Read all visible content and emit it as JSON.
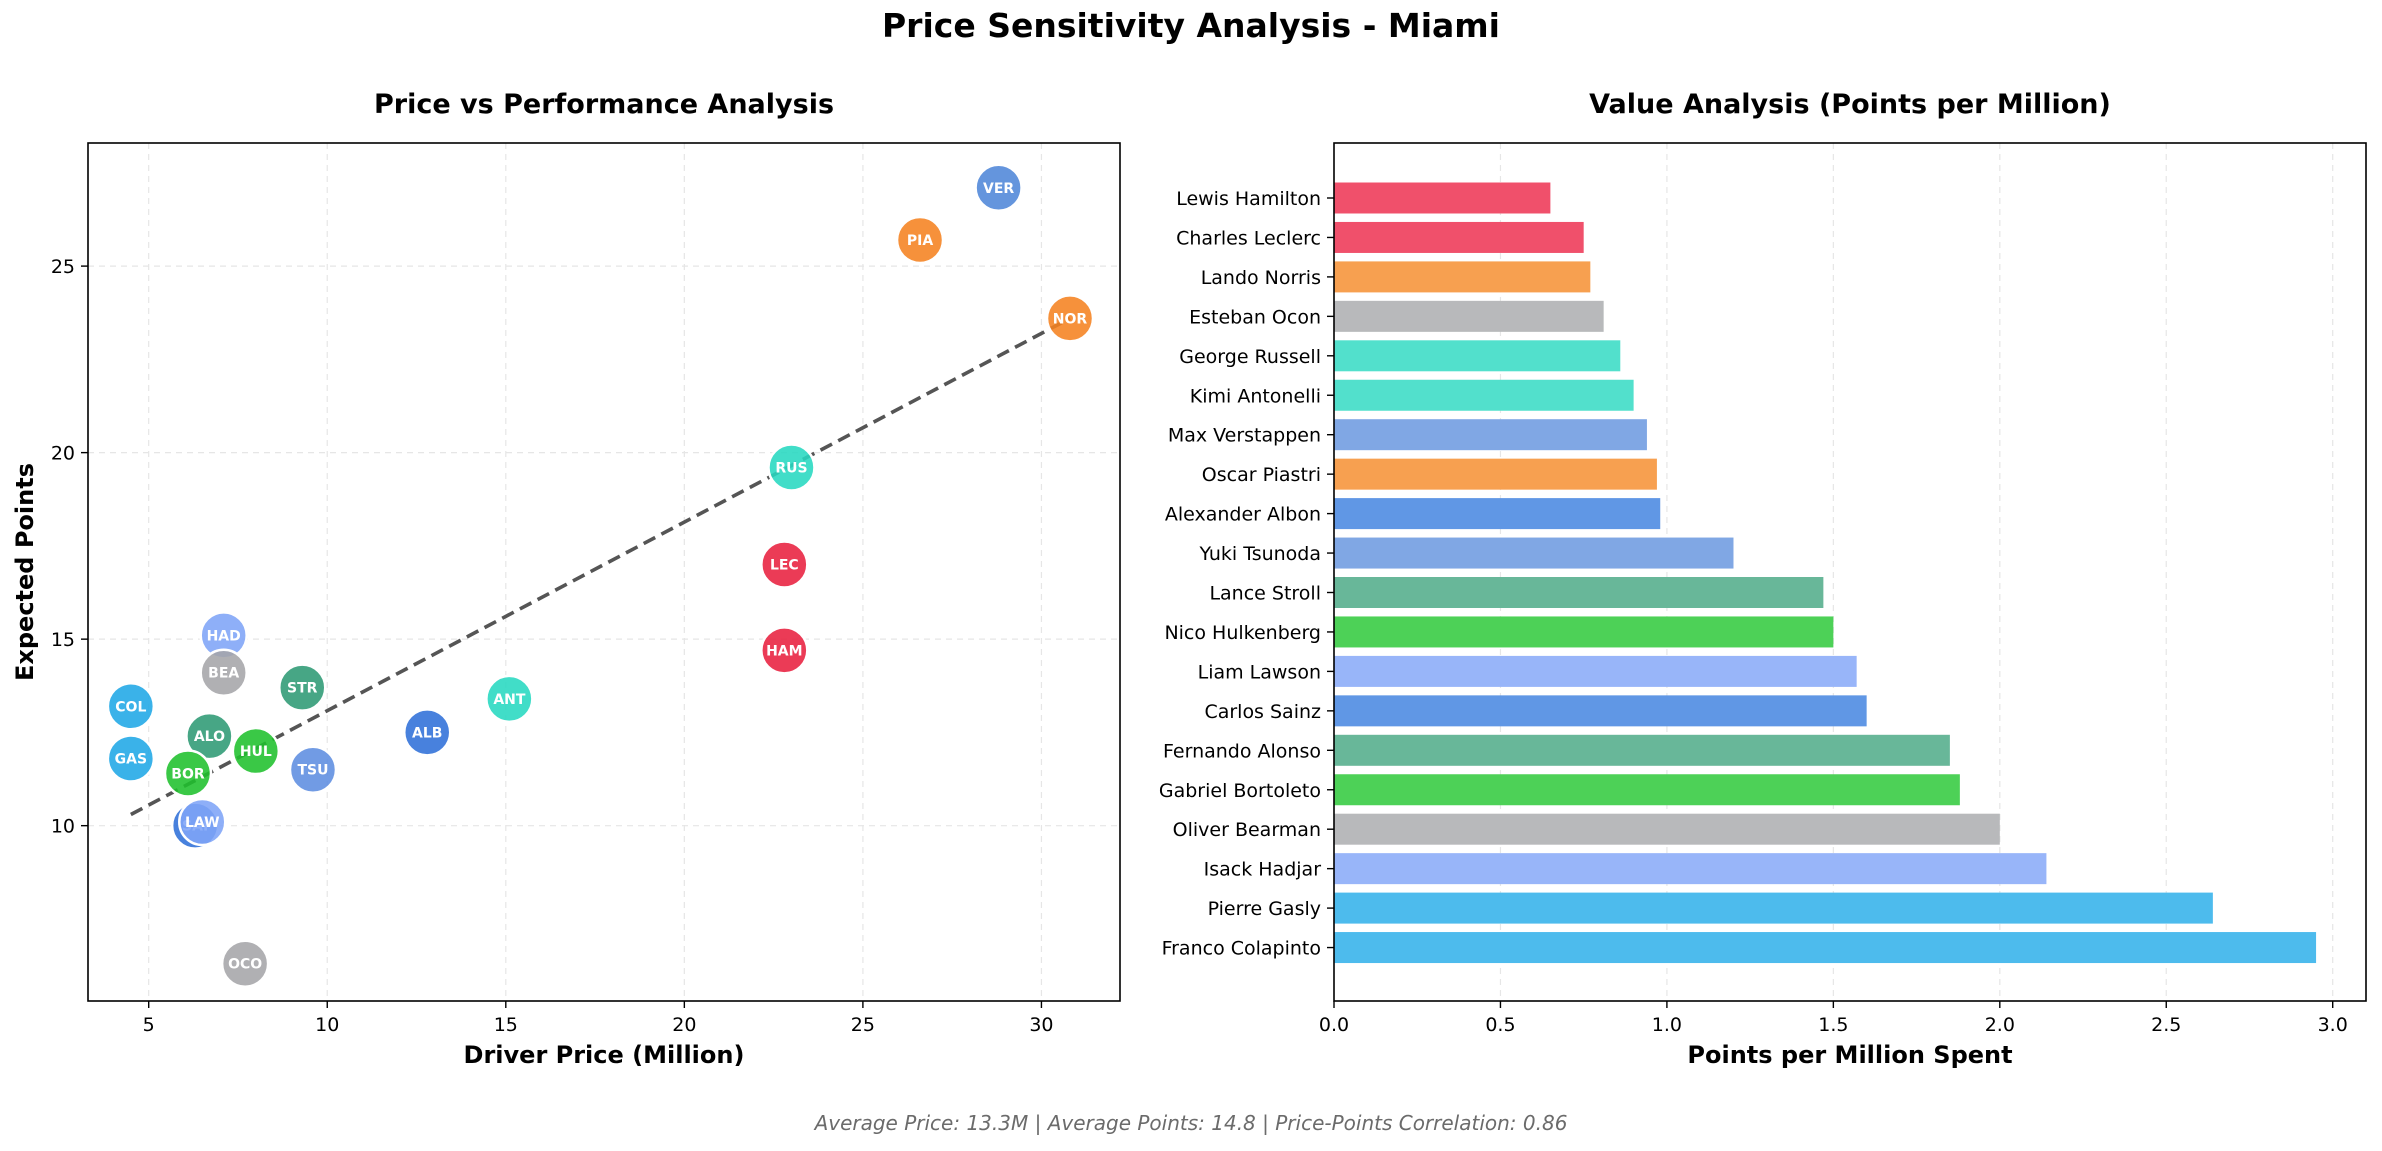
{
  "figure": {
    "title": "Price Sensitivity Analysis - Miami",
    "footer": "Average Price: 13.3M | Average Points: 14.8 | Price-Points Correlation: 0.86"
  },
  "chart_data": [
    {
      "type": "scatter",
      "title": "Price vs Performance Analysis",
      "xlabel": "Driver Price (Million)",
      "ylabel": "Expected Points",
      "xlim": [
        3.3,
        32.2
      ],
      "ylim": [
        5.3,
        28.3
      ],
      "xticks": [
        5,
        10,
        15,
        20,
        25,
        30
      ],
      "yticks": [
        10,
        15,
        20,
        25
      ],
      "grid": true,
      "trendline": {
        "style": "dashed",
        "x": [
          4.5,
          30.8
        ],
        "y": [
          10.3,
          23.6
        ],
        "color": "#555555"
      },
      "points": [
        {
          "label": "VER",
          "x": 28.8,
          "y": 27.1,
          "color": "#4f86d8"
        },
        {
          "label": "PIA",
          "x": 26.6,
          "y": 25.7,
          "color": "#f58220"
        },
        {
          "label": "NOR",
          "x": 30.8,
          "y": 23.6,
          "color": "#f58220"
        },
        {
          "label": "RUS",
          "x": 23.0,
          "y": 19.6,
          "color": "#27d8c0"
        },
        {
          "label": "LEC",
          "x": 22.8,
          "y": 17.0,
          "color": "#e8203f"
        },
        {
          "label": "HAM",
          "x": 22.8,
          "y": 14.7,
          "color": "#e8203f"
        },
        {
          "label": "HAD",
          "x": 7.1,
          "y": 15.1,
          "color": "#7ea4f7"
        },
        {
          "label": "BEA",
          "x": 7.1,
          "y": 14.1,
          "color": "#a5a5a8"
        },
        {
          "label": "STR",
          "x": 9.3,
          "y": 13.7,
          "color": "#2e9a74"
        },
        {
          "label": "ANT",
          "x": 15.1,
          "y": 13.4,
          "color": "#27d8c0"
        },
        {
          "label": "COL",
          "x": 4.5,
          "y": 13.2,
          "color": "#1fa7e6"
        },
        {
          "label": "ALB",
          "x": 12.8,
          "y": 12.5,
          "color": "#2f6fd8"
        },
        {
          "label": "ALO",
          "x": 6.7,
          "y": 12.4,
          "color": "#2e9a74"
        },
        {
          "label": "HUL",
          "x": 8.0,
          "y": 12.0,
          "color": "#1fc02c"
        },
        {
          "label": "GAS",
          "x": 4.5,
          "y": 11.8,
          "color": "#1fa7e6"
        },
        {
          "label": "TSU",
          "x": 9.6,
          "y": 11.5,
          "color": "#5d8de0"
        },
        {
          "label": "BOR",
          "x": 6.1,
          "y": 11.4,
          "color": "#1fc02c"
        },
        {
          "label": "SAI",
          "x": 6.3,
          "y": 10.0,
          "color": "#2f6fd8"
        },
        {
          "label": "LAW",
          "x": 6.5,
          "y": 10.1,
          "color": "#7ea4f7"
        },
        {
          "label": "OCO",
          "x": 7.7,
          "y": 6.3,
          "color": "#a5a5a8"
        }
      ]
    },
    {
      "type": "bar",
      "orientation": "horizontal",
      "title": "Value Analysis (Points per Million)",
      "xlabel": "Points per Million Spent",
      "ylabel": "",
      "xlim": [
        0,
        3.1
      ],
      "xticks": [
        0.0,
        0.5,
        1.0,
        1.5,
        2.0,
        2.5,
        3.0
      ],
      "grid": true,
      "categories": [
        "Lewis Hamilton",
        "Charles Leclerc",
        "Lando Norris",
        "Esteban Ocon",
        "George Russell",
        "Kimi Antonelli",
        "Max Verstappen",
        "Oscar Piastri",
        "Alexander Albon",
        "Yuki Tsunoda",
        "Lance Stroll",
        "Nico Hulkenberg",
        "Liam Lawson",
        "Carlos Sainz",
        "Fernando Alonso",
        "Gabriel Bortoleto",
        "Oliver Bearman",
        "Isack Hadjar",
        "Pierre Gasly",
        "Franco Colapinto"
      ],
      "values": [
        0.65,
        0.75,
        0.77,
        0.81,
        0.86,
        0.9,
        0.94,
        0.97,
        0.98,
        1.2,
        1.47,
        1.5,
        1.57,
        1.6,
        1.85,
        1.88,
        2.0,
        2.14,
        2.64,
        2.95
      ],
      "colors": [
        "#f0506b",
        "#f0506b",
        "#f7a050",
        "#b8b9bb",
        "#52e0cc",
        "#52e0cc",
        "#80a7e4",
        "#f7a050",
        "#6097e5",
        "#80a7e4",
        "#68b799",
        "#4dd157",
        "#98b5f9",
        "#6097e5",
        "#68b799",
        "#4dd157",
        "#b8b9bb",
        "#98b5f9",
        "#4dbbed",
        "#4dbbed"
      ]
    }
  ]
}
